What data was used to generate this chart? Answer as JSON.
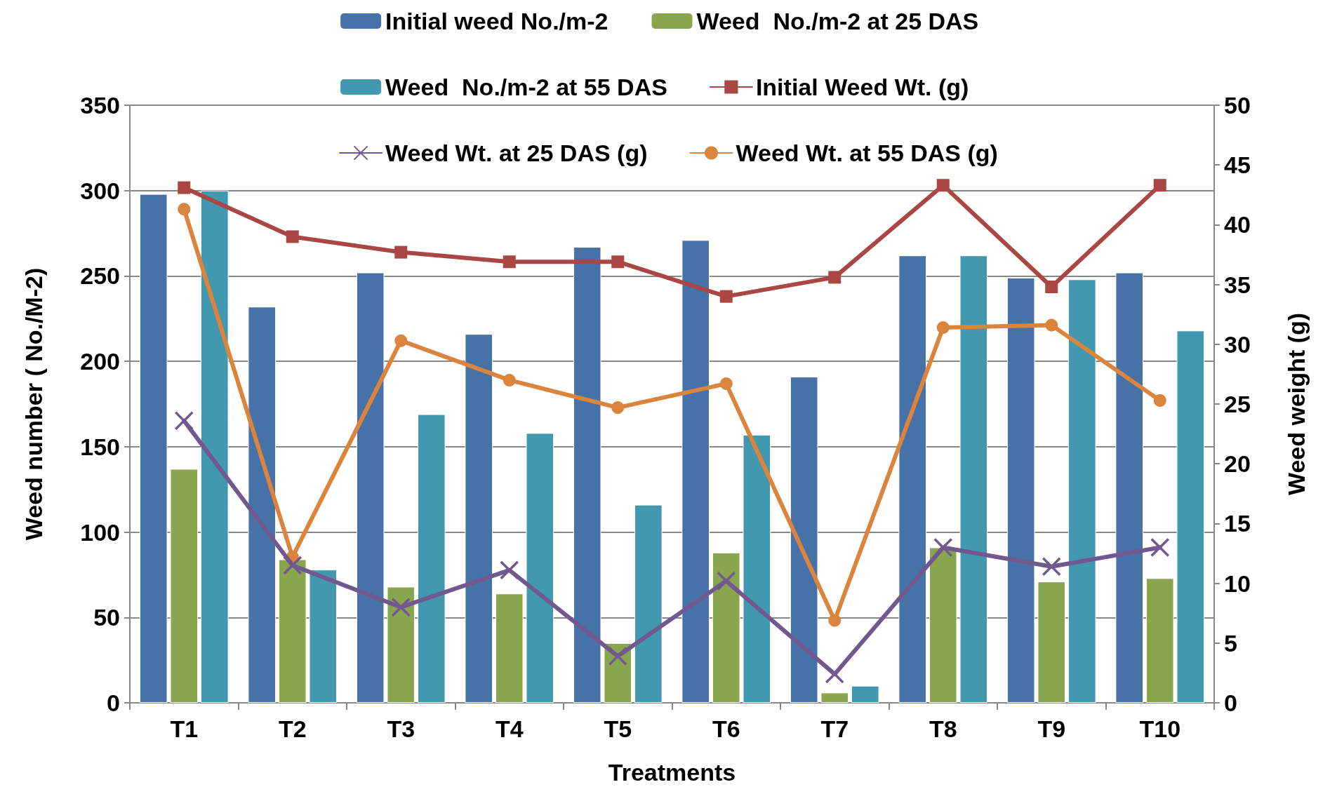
{
  "chart_data": {
    "type": "bar",
    "xlabel": "Treatments",
    "ylabel": "Weed number ( No./M-2)",
    "y2label": "Weed weight (g)",
    "categories": [
      "T1",
      "T2",
      "T3",
      "T4",
      "T5",
      "T6",
      "T7",
      "T8",
      "T9",
      "T10"
    ],
    "series": [
      {
        "name": "Initial weed No./m-2",
        "color": "#4672a8",
        "values": [
          298,
          232,
          252,
          216,
          267,
          271,
          191,
          262,
          249,
          252
        ]
      },
      {
        "name": "Weed  No./m-2 at 25 DAS",
        "color": "#89a54e",
        "values": [
          137,
          84,
          68,
          64,
          35,
          88,
          6,
          91,
          71,
          73
        ]
      },
      {
        "name": "Weed  No./m-2 at 55 DAS",
        "color": "#4298af",
        "values": [
          300,
          78,
          169,
          158,
          116,
          157,
          10,
          262,
          248,
          218
        ]
      },
      {
        "name": "Initial Weed Wt. (g)",
        "type": "line",
        "axis": "y2",
        "marker": "square",
        "color": "#aa4643",
        "values": [
          43.1,
          39,
          37.7,
          36.9,
          36.9,
          34,
          35.6,
          43.3,
          34.8,
          43.3
        ]
      },
      {
        "name": "Weed Wt. at 25 DAS (g)",
        "type": "line",
        "axis": "y2",
        "marker": "cross",
        "color": "#71588f",
        "values": [
          23.6,
          11.5,
          8,
          11.1,
          3.9,
          10.2,
          2.4,
          13,
          11.4,
          13
        ]
      },
      {
        "name": "Weed Wt. at 55 DAS (g)",
        "type": "line",
        "axis": "y2",
        "marker": "circle",
        "color": "#db843d",
        "values": [
          41.3,
          12.2,
          30.3,
          27,
          24.7,
          26.7,
          6.9,
          31.4,
          31.6,
          25.3
        ]
      }
    ],
    "ylim": [
      0,
      350
    ],
    "yticks": [
      0,
      50,
      100,
      150,
      200,
      250,
      300,
      350
    ],
    "y2lim": [
      0,
      50
    ],
    "y2ticks": [
      0,
      5,
      10,
      15,
      20,
      25,
      30,
      35,
      40,
      45,
      50
    ],
    "grid": "y",
    "legend": "top"
  }
}
